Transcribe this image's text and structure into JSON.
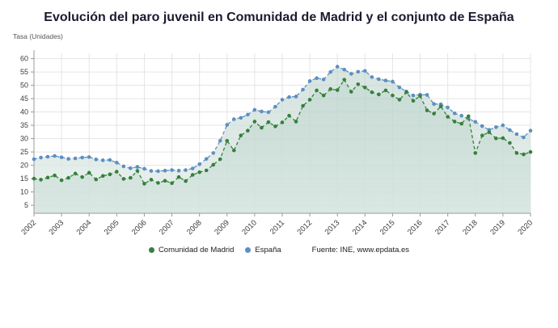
{
  "title": "Evolución del paro juvenil en Comunidad de Madrid y el conjunto de España",
  "y_axis_unit": "Tasa (Unidades)",
  "legend": {
    "madrid": "Comunidad de Madrid",
    "espana": "España",
    "source": "Fuente: INE, www.epdata.es"
  },
  "colors": {
    "title_text": "#1b1b2f",
    "axis_text": "#3c3c3c",
    "grid_line": "#e5e5e5",
    "axis_line": "#9a9a9a",
    "area_fill_top": "#b7cfc7",
    "area_fill_bottom": "#edf4f1",
    "area_overlay": "rgba(173,201,192,0.30)",
    "madrid_green": "#35803c",
    "espana_blue": "#5d8fc1"
  },
  "chart_data": {
    "type": "line",
    "title": "Evolución del paro juvenil en Comunidad de Madrid y el conjunto de España",
    "ylabel": "Tasa (Unidades)",
    "x_labels": [
      "2002",
      "2003",
      "2004",
      "2005",
      "2006",
      "2007",
      "2008",
      "2009",
      "2010",
      "2011",
      "2012",
      "2013",
      "2014",
      "2015",
      "2016",
      "2017",
      "2018",
      "2019",
      "2020"
    ],
    "points_per_year": 4,
    "ylim": [
      2,
      62
    ],
    "yticks": [
      5,
      10,
      15,
      20,
      25,
      30,
      35,
      40,
      45,
      50,
      55,
      60
    ],
    "grid": true,
    "legend_position": "bottom",
    "line_style": "dashed-with-markers",
    "series": [
      {
        "id": "madrid",
        "name": "Comunidad de Madrid",
        "color": "#35803c",
        "values": [
          15.0,
          14.6,
          15.4,
          16.2,
          14.4,
          15.3,
          16.9,
          15.6,
          17.2,
          14.7,
          16.0,
          16.6,
          17.6,
          14.9,
          15.3,
          17.9,
          13.1,
          14.6,
          13.4,
          14.2,
          13.3,
          15.6,
          14.1,
          16.4,
          17.4,
          18.1,
          20.2,
          22.3,
          29.2,
          25.6,
          31.2,
          33.0,
          36.4,
          34.1,
          36.2,
          34.6,
          36.1,
          38.6,
          36.4,
          42.3,
          44.6,
          48.1,
          46.2,
          48.6,
          48.2,
          52.1,
          47.6,
          50.4,
          49.2,
          47.4,
          46.6,
          48.1,
          46.2,
          44.6,
          47.4,
          44.2,
          46.0,
          40.6,
          39.4,
          42.1,
          38.2,
          36.4,
          35.6,
          38.4,
          24.6,
          31.2,
          32.4,
          30.1,
          30.2,
          28.4,
          24.6,
          24.1,
          25.0
        ]
      },
      {
        "id": "espana",
        "name": "España",
        "color": "#5d8fc1",
        "values": [
          22.3,
          22.9,
          23.2,
          23.5,
          23.0,
          22.4,
          22.6,
          22.9,
          23.1,
          22.2,
          21.9,
          22.0,
          21.0,
          19.6,
          18.9,
          19.4,
          18.7,
          17.9,
          17.8,
          18.0,
          18.2,
          18.0,
          18.2,
          18.8,
          20.4,
          22.4,
          24.6,
          29.2,
          35.2,
          37.3,
          37.8,
          39.0,
          40.8,
          40.2,
          39.9,
          42.0,
          44.6,
          45.6,
          45.8,
          48.4,
          51.6,
          52.7,
          52.2,
          55.0,
          57.0,
          55.9,
          54.3,
          55.1,
          55.4,
          53.1,
          52.3,
          51.8,
          51.4,
          49.2,
          47.7,
          46.2,
          46.5,
          46.4,
          43.0,
          42.9,
          41.7,
          39.5,
          38.6,
          37.5,
          36.3,
          34.7,
          33.3,
          34.3,
          35.0,
          33.2,
          31.7,
          30.5,
          33.0
        ]
      }
    ]
  }
}
